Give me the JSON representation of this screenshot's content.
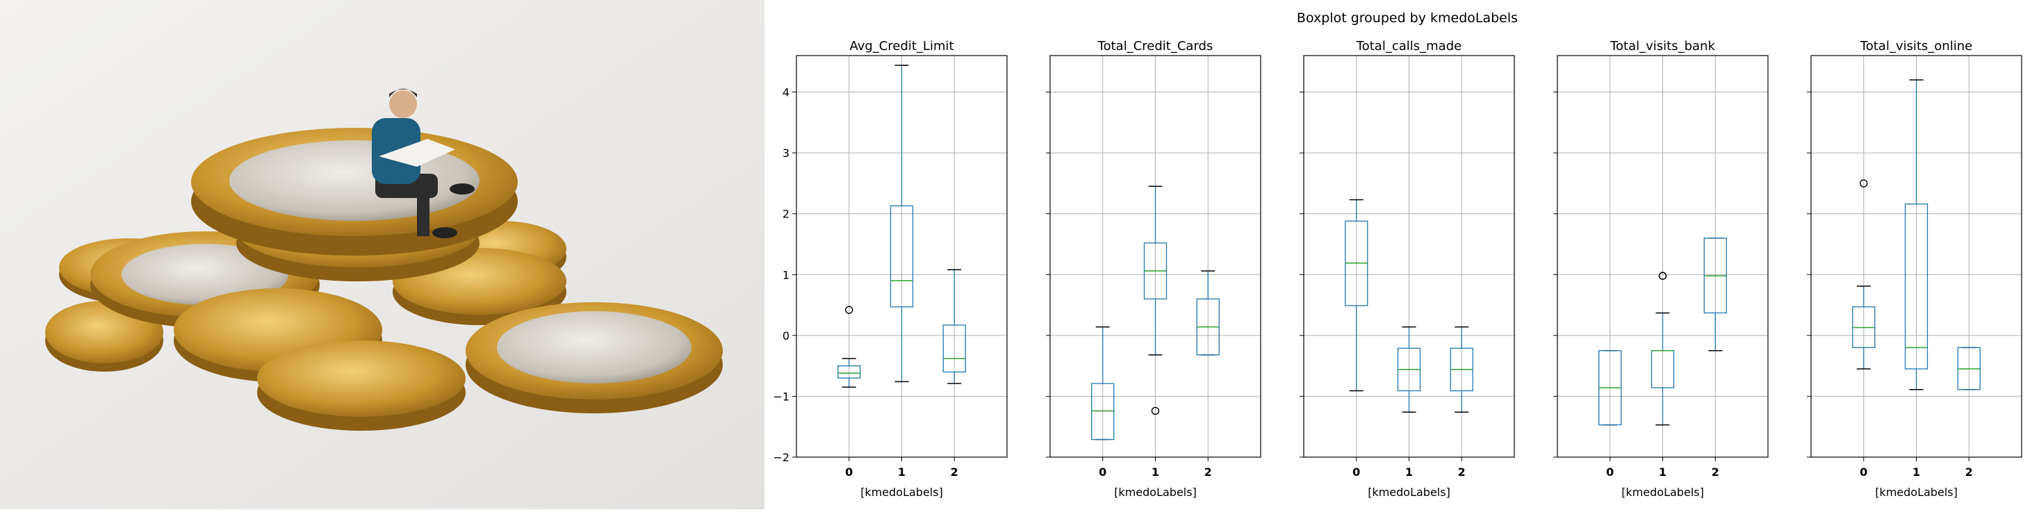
{
  "chart_data": {
    "type": "boxplot",
    "title": "Boxplot grouped by kmedoLabels",
    "xlabel": "[kmedoLabels]",
    "categories": [
      "0",
      "1",
      "2"
    ],
    "ylim": [
      -2,
      4.6
    ],
    "yticks": [
      -2,
      -1,
      0,
      1,
      2,
      3,
      4
    ],
    "grid": true,
    "box_color": "#1f77b4",
    "median_color": "#2ca02c",
    "panels": [
      {
        "title": "Avg_Credit_Limit",
        "boxes": [
          {
            "category": "0",
            "whislo": -0.85,
            "q1": -0.7,
            "med": -0.62,
            "q3": -0.5,
            "whishi": -0.38,
            "fliers": [
              0.42
            ]
          },
          {
            "category": "1",
            "whislo": -0.76,
            "q1": 0.47,
            "med": 0.9,
            "q3": 2.13,
            "whishi": 4.44,
            "fliers": []
          },
          {
            "category": "2",
            "whislo": -0.79,
            "q1": -0.6,
            "med": -0.38,
            "q3": 0.17,
            "whishi": 1.08,
            "fliers": []
          }
        ]
      },
      {
        "title": "Total_Credit_Cards",
        "boxes": [
          {
            "category": "0",
            "whislo": -1.71,
            "q1": -1.71,
            "med": -1.24,
            "q3": -0.79,
            "whishi": 0.14,
            "fliers": []
          },
          {
            "category": "1",
            "whislo": -0.32,
            "q1": 0.6,
            "med": 1.06,
            "q3": 1.52,
            "whishi": 2.45,
            "fliers": [
              -1.24
            ]
          },
          {
            "category": "2",
            "whislo": -0.32,
            "q1": -0.32,
            "med": 0.14,
            "q3": 0.6,
            "whishi": 1.06,
            "fliers": []
          }
        ]
      },
      {
        "title": "Total_calls_made",
        "boxes": [
          {
            "category": "0",
            "whislo": -0.91,
            "q1": 0.49,
            "med": 1.19,
            "q3": 1.88,
            "whishi": 2.23,
            "fliers": []
          },
          {
            "category": "1",
            "whislo": -1.26,
            "q1": -0.91,
            "med": -0.56,
            "q3": -0.21,
            "whishi": 0.14,
            "fliers": []
          },
          {
            "category": "2",
            "whislo": -1.26,
            "q1": -0.91,
            "med": -0.56,
            "q3": -0.21,
            "whishi": 0.14,
            "fliers": []
          }
        ]
      },
      {
        "title": "Total_visits_bank",
        "boxes": [
          {
            "category": "0",
            "whislo": -1.47,
            "q1": -1.47,
            "med": -0.86,
            "q3": -0.25,
            "whishi": -0.25,
            "fliers": []
          },
          {
            "category": "1",
            "whislo": -1.47,
            "q1": -0.86,
            "med": -0.25,
            "q3": -0.25,
            "whishi": 0.37,
            "fliers": [
              0.98,
              0.98
            ]
          },
          {
            "category": "2",
            "whislo": -0.25,
            "q1": 0.37,
            "med": 0.98,
            "q3": 1.6,
            "whishi": 1.6,
            "fliers": []
          }
        ]
      },
      {
        "title": "Total_visits_online",
        "boxes": [
          {
            "category": "0",
            "whislo": -0.55,
            "q1": -0.2,
            "med": 0.13,
            "q3": 0.47,
            "whishi": 0.81,
            "fliers": [
              2.5
            ]
          },
          {
            "category": "1",
            "whislo": -0.89,
            "q1": -0.55,
            "med": -0.2,
            "q3": 2.16,
            "whishi": 4.2,
            "fliers": []
          },
          {
            "category": "2",
            "whislo": -0.89,
            "q1": -0.89,
            "med": -0.55,
            "q3": -0.2,
            "whishi": -0.2,
            "fliers": []
          }
        ]
      }
    ]
  },
  "photo": {
    "description_icon": "coins-with-miniature-figure-reading-newspaper",
    "colors": {
      "background": "#eceae8",
      "gold": "#c9952e",
      "silver": "#cfcac2",
      "figure_jacket": "#1f5f7f"
    }
  }
}
